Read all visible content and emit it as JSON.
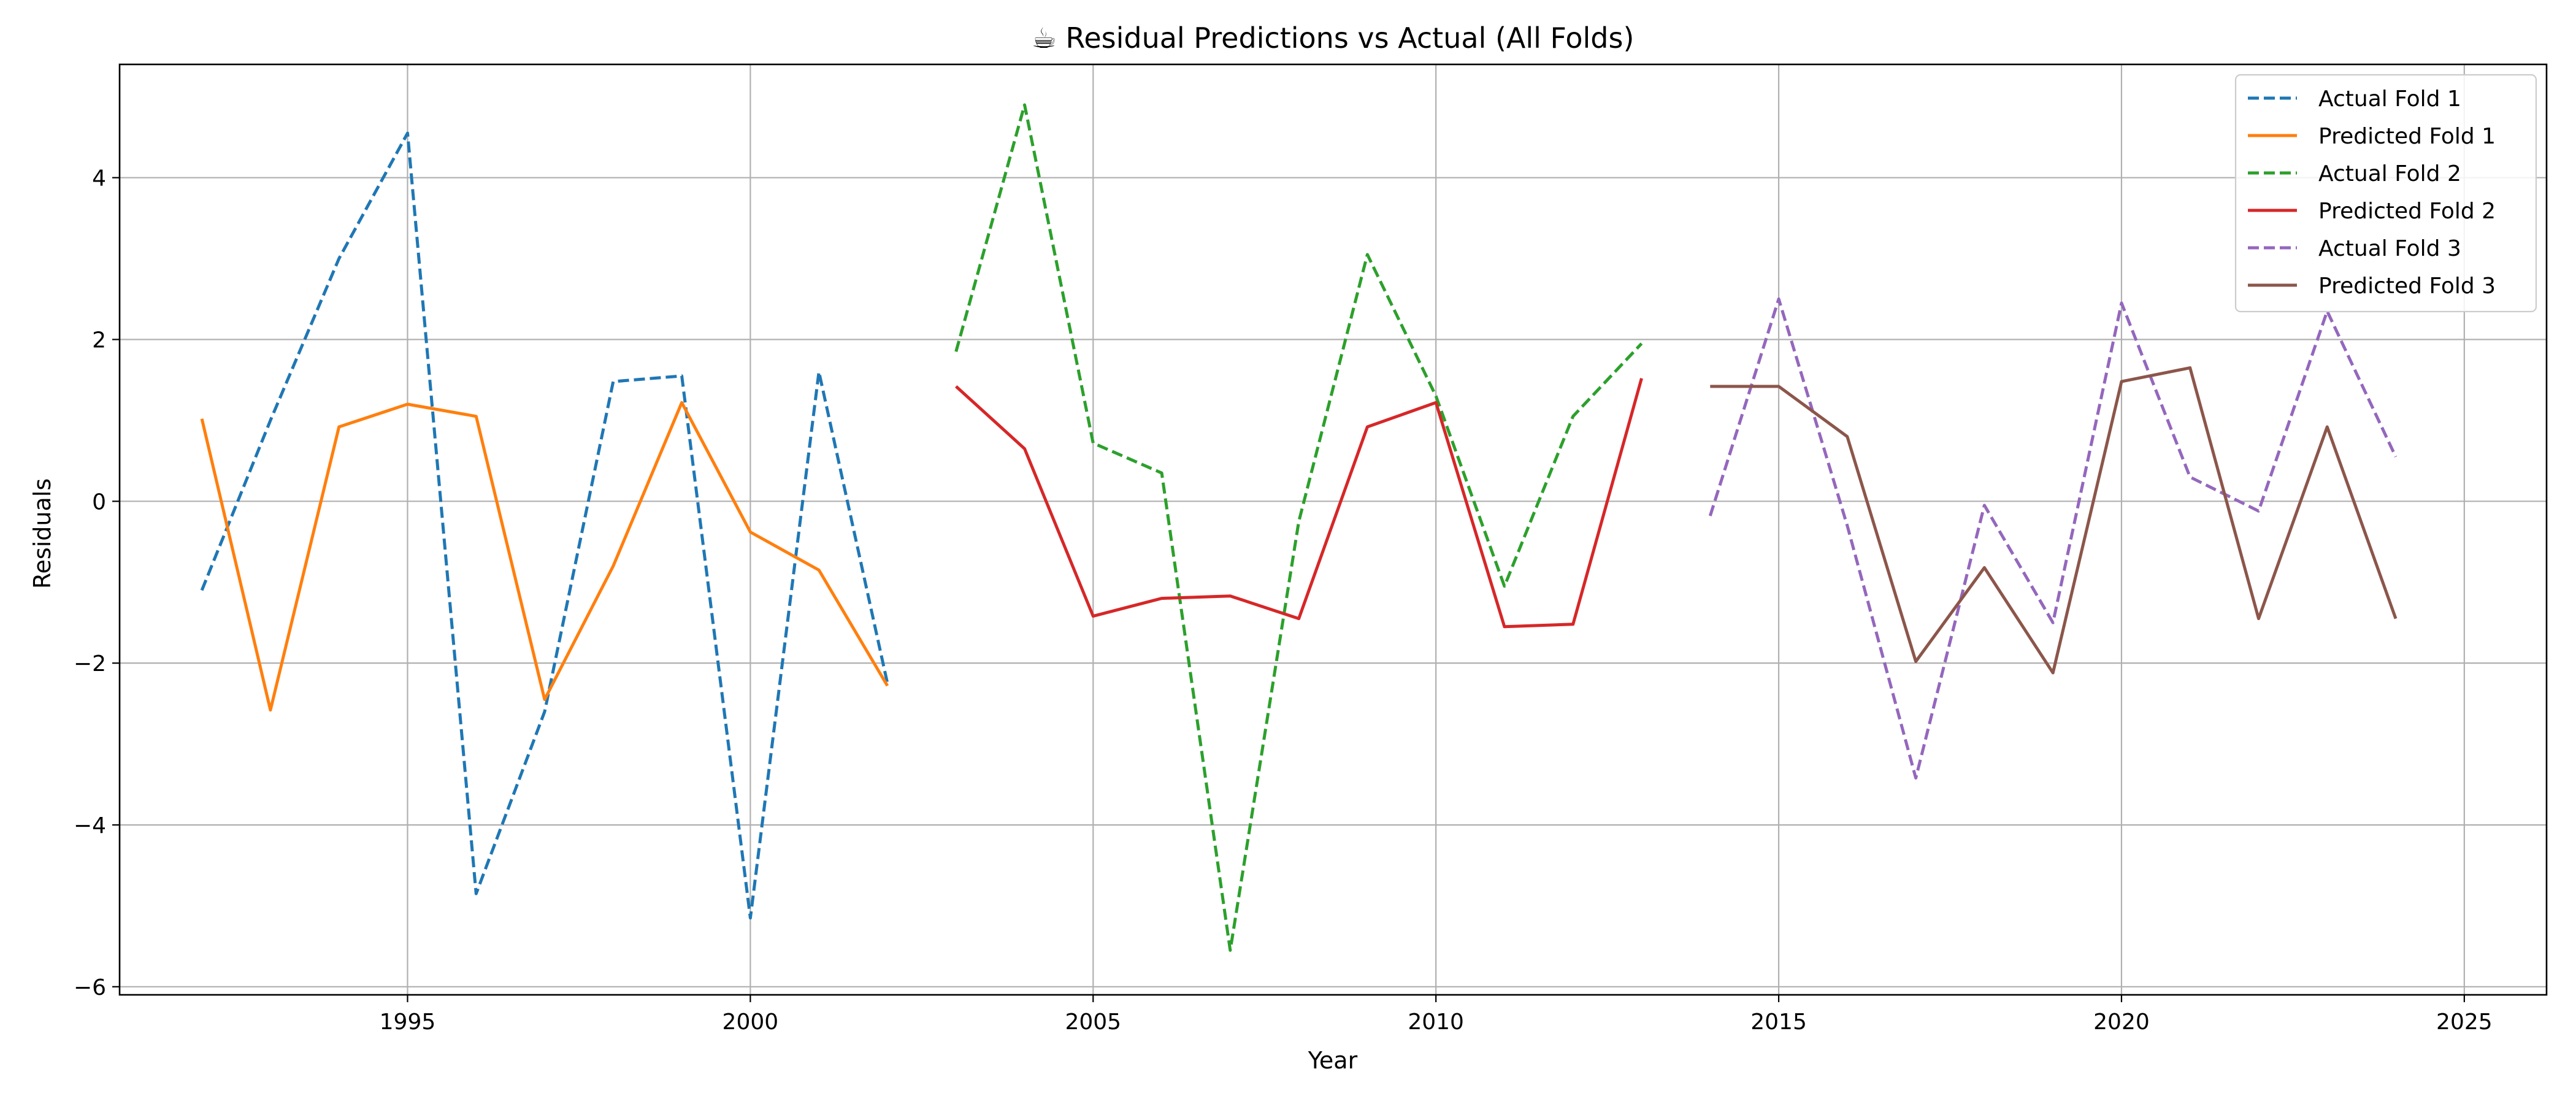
{
  "chart_data": {
    "type": "line",
    "title": "☕ Residual Predictions vs Actual (All Folds)",
    "xlabel": "Year",
    "ylabel": "Residuals",
    "xlim": [
      1990.8,
      2026.2
    ],
    "ylim": [
      -6.1,
      5.4
    ],
    "xticks": [
      1995,
      2000,
      2005,
      2010,
      2015,
      2020,
      2025
    ],
    "yticks": [
      -6,
      -4,
      -2,
      0,
      2,
      4
    ],
    "grid": true,
    "legend_position": "top-right",
    "series": [
      {
        "name": "Actual Fold 1",
        "color": "#1f77b4",
        "style": "dashed",
        "x": [
          1992,
          1993,
          1994,
          1995,
          1996,
          1997,
          1998,
          1999,
          2000,
          2001,
          2002
        ],
        "y": [
          -1.1,
          1.0,
          3.0,
          4.55,
          -4.85,
          -2.6,
          1.48,
          1.55,
          -5.15,
          1.6,
          -2.25
        ]
      },
      {
        "name": "Predicted Fold 1",
        "color": "#ff7f0e",
        "style": "solid",
        "x": [
          1992,
          1993,
          1994,
          1995,
          1996,
          1997,
          1998,
          1999,
          2000,
          2001,
          2002
        ],
        "y": [
          1.02,
          -2.58,
          0.92,
          1.2,
          1.05,
          -2.45,
          -0.8,
          1.22,
          -0.38,
          -0.85,
          -2.28
        ]
      },
      {
        "name": "Actual Fold 2",
        "color": "#2ca02c",
        "style": "dashed",
        "x": [
          2003,
          2004,
          2005,
          2006,
          2007,
          2008,
          2009,
          2010,
          2011,
          2012,
          2013
        ],
        "y": [
          1.85,
          4.9,
          0.72,
          0.35,
          -5.55,
          -0.25,
          3.05,
          1.3,
          -1.05,
          1.05,
          1.95
        ]
      },
      {
        "name": "Predicted Fold 2",
        "color": "#d62728",
        "style": "solid",
        "x": [
          2003,
          2004,
          2005,
          2006,
          2007,
          2008,
          2009,
          2010,
          2011,
          2012,
          2013
        ],
        "y": [
          1.42,
          0.65,
          -1.42,
          -1.2,
          -1.17,
          -1.45,
          0.92,
          1.22,
          -1.55,
          -1.52,
          1.52
        ]
      },
      {
        "name": "Actual Fold 3",
        "color": "#9467bd",
        "style": "dashed",
        "x": [
          2014,
          2015,
          2016,
          2017,
          2018,
          2019,
          2020,
          2021,
          2022,
          2023,
          2024
        ],
        "y": [
          -0.18,
          2.5,
          -0.3,
          -3.42,
          -0.05,
          -1.5,
          2.45,
          0.3,
          -0.12,
          2.35,
          0.55
        ]
      },
      {
        "name": "Predicted Fold 3",
        "color": "#8c564b",
        "style": "solid",
        "x": [
          2014,
          2015,
          2016,
          2017,
          2018,
          2019,
          2020,
          2021,
          2022,
          2023,
          2024
        ],
        "y": [
          1.42,
          1.42,
          0.8,
          -1.98,
          -0.82,
          -2.12,
          1.48,
          1.65,
          -1.45,
          0.92,
          -1.45
        ]
      }
    ]
  }
}
